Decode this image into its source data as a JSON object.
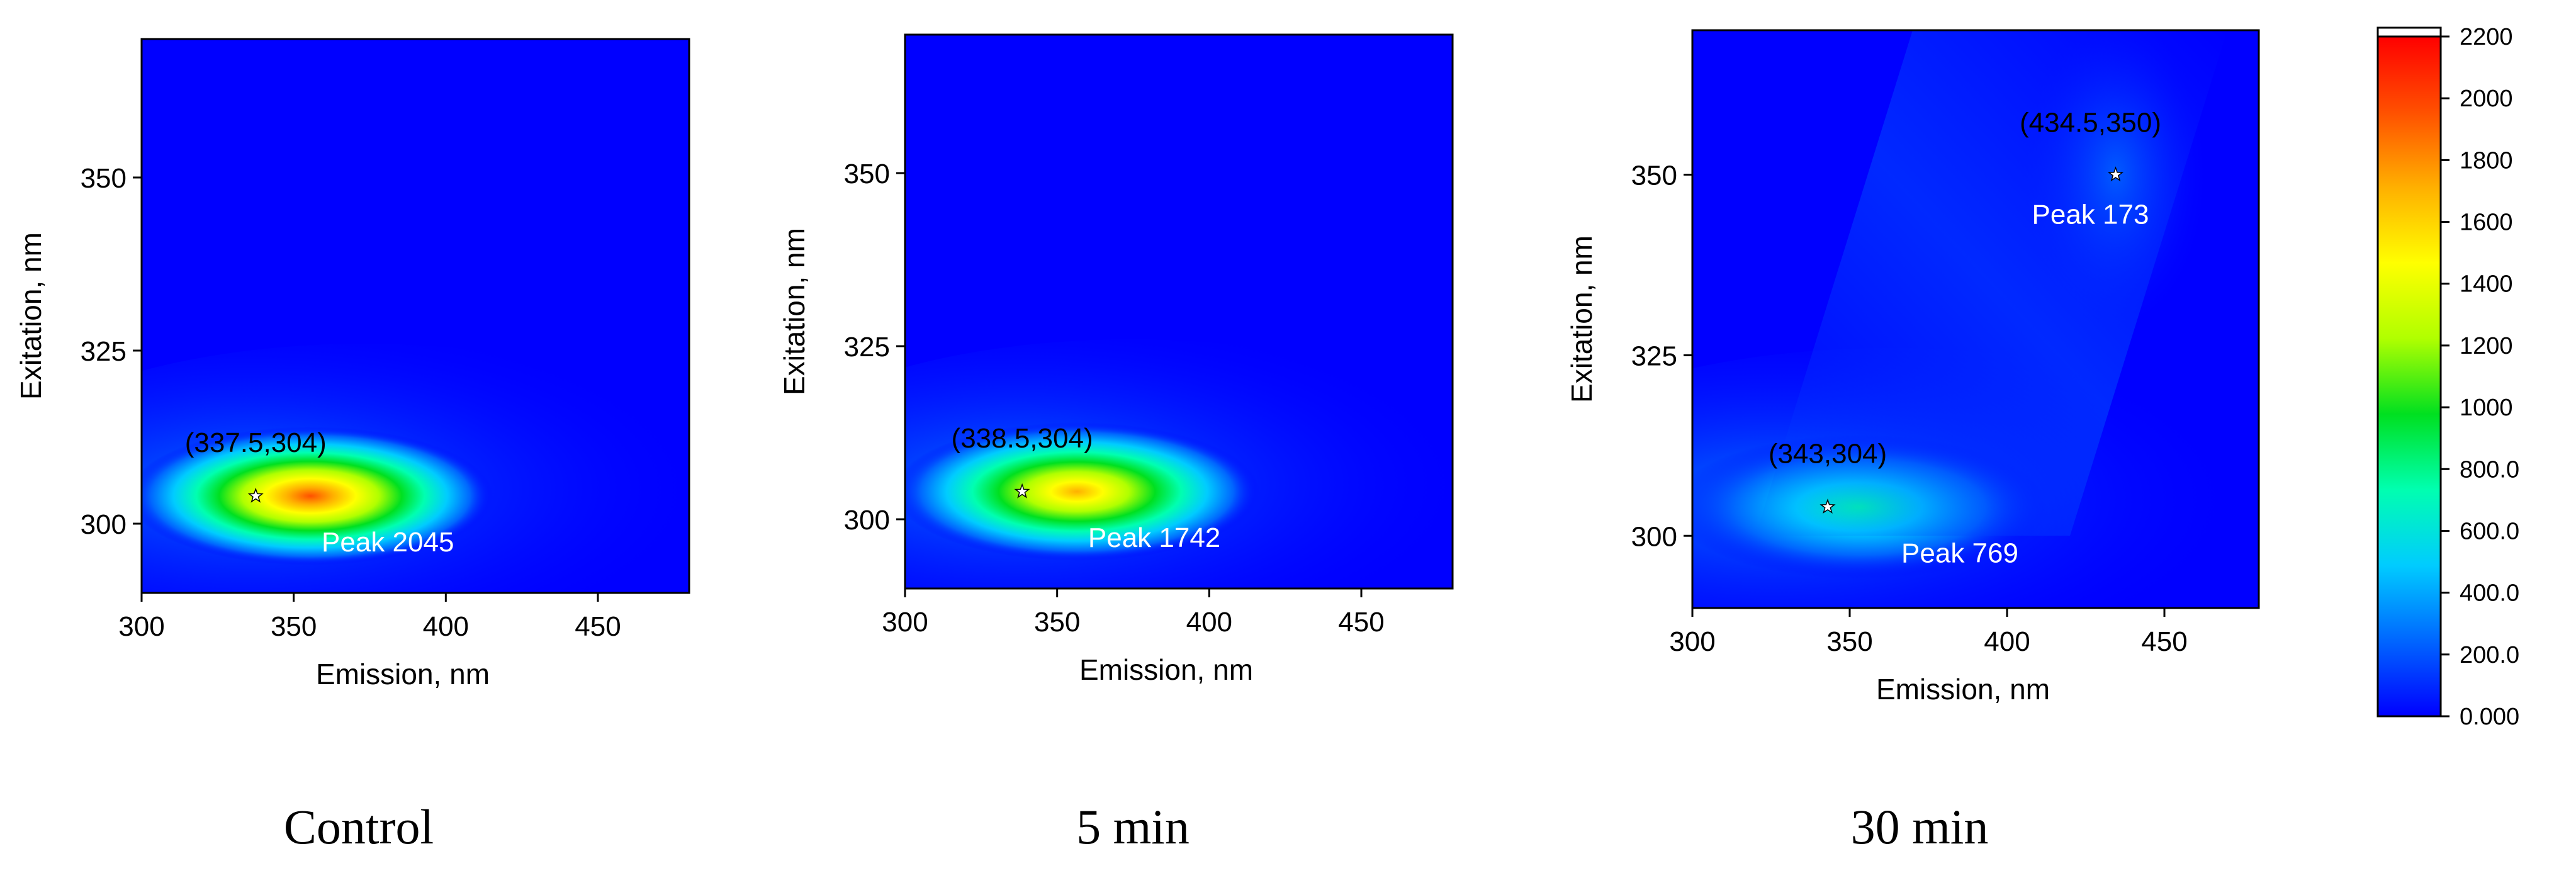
{
  "chart_data": [
    {
      "type": "heatmap",
      "caption": "Control",
      "xlabel": "Emission, nm",
      "ylabel": "Exitation, nm",
      "xlim": [
        300,
        480
      ],
      "ylim": [
        290,
        370
      ],
      "xticks": [
        300,
        350,
        400,
        450
      ],
      "yticks": [
        300,
        325,
        350
      ],
      "peaks": [
        {
          "em": 337.5,
          "ex": 304,
          "coord_label": "(337.5,304)",
          "value": 2045,
          "value_label": "Peak 2045"
        }
      ]
    },
    {
      "type": "heatmap",
      "caption": "5 min",
      "xlabel": "Emission, nm",
      "ylabel": "Exitation, nm",
      "xlim": [
        300,
        480
      ],
      "ylim": [
        290,
        370
      ],
      "xticks": [
        300,
        350,
        400,
        450
      ],
      "yticks": [
        300,
        325,
        350
      ],
      "peaks": [
        {
          "em": 338.5,
          "ex": 304,
          "coord_label": "(338.5,304)",
          "value": 1742,
          "value_label": "Peak 1742"
        }
      ]
    },
    {
      "type": "heatmap",
      "caption": "30 min",
      "xlabel": "Emission, nm",
      "ylabel": "Exitation, nm",
      "xlim": [
        300,
        480
      ],
      "ylim": [
        290,
        370
      ],
      "xticks": [
        300,
        350,
        400,
        450
      ],
      "yticks": [
        300,
        325,
        350
      ],
      "peaks": [
        {
          "em": 343,
          "ex": 304,
          "coord_label": "(343,304)",
          "value": 769,
          "value_label": "Peak 769"
        },
        {
          "em": 434.5,
          "ex": 350,
          "coord_label": "(434.5,350)",
          "value": 173,
          "value_label": "Peak 173"
        }
      ]
    }
  ],
  "colorbar": {
    "range": [
      0,
      2200
    ],
    "ticks": [
      "0.000",
      "200.0",
      "400.0",
      "600.0",
      "800.0",
      "1000",
      "1200",
      "1400",
      "1600",
      "1800",
      "2000",
      "2200"
    ],
    "colors": [
      "#0000ff",
      "#0066ff",
      "#00ccff",
      "#00ffb0",
      "#00e020",
      "#b0ff00",
      "#ffff00",
      "#ffb000",
      "#ff5000",
      "#ff0000"
    ]
  }
}
